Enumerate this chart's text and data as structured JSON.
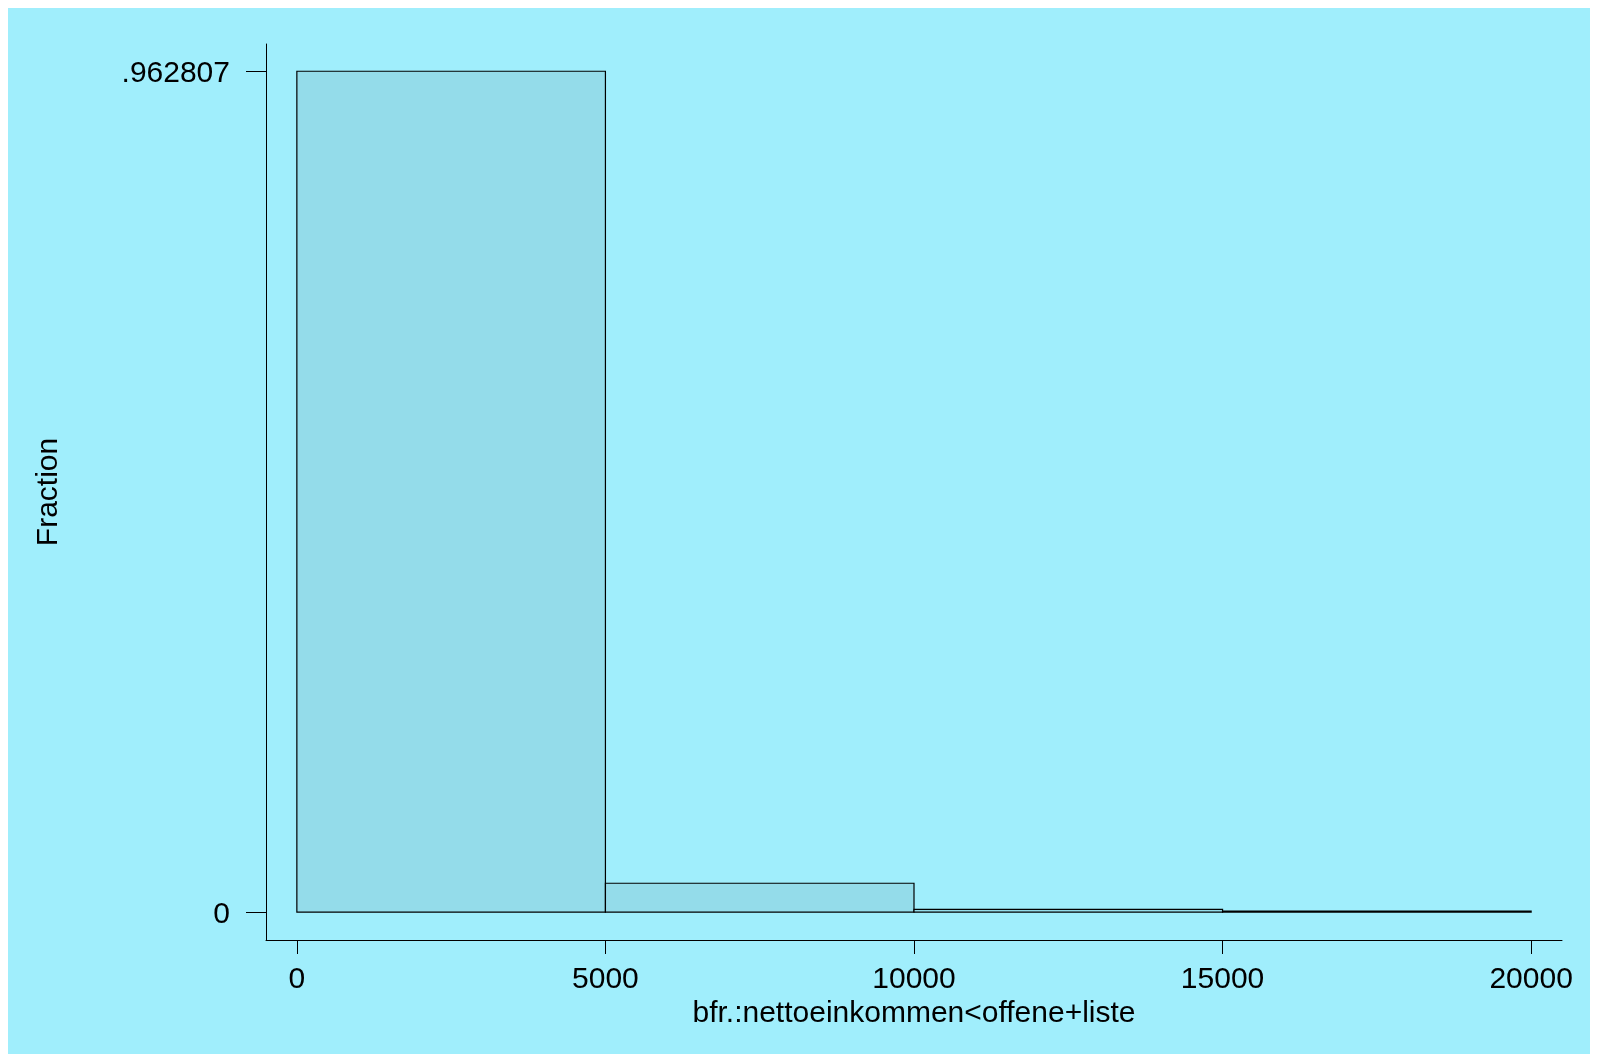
{
  "chart_data": {
    "type": "histogram",
    "xlabel": "bfr.:nettoeinkommen<offene+liste",
    "ylabel": "Fraction",
    "bins": [
      0,
      5000,
      10000,
      15000,
      20000
    ],
    "values": [
      0.962807,
      0.033,
      0.003,
      0.001
    ],
    "color": "#94dcea",
    "xlim": [
      -500,
      20500
    ],
    "xticks": [
      0,
      5000,
      10000,
      15000,
      20000
    ],
    "ylim": [
      -0.032,
      0.994
    ],
    "yticks": [
      {
        "value": 0,
        "label": "0"
      },
      {
        "value": 0.962807,
        "label": ".962807"
      }
    ],
    "grid": false
  }
}
